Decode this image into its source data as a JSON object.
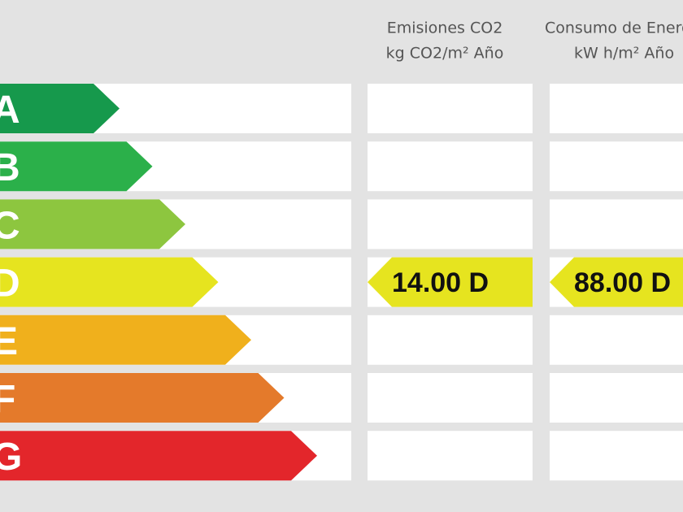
{
  "header": {
    "emissions_title": "Emisiones CO2",
    "emissions_unit": "kg CO2/m² Año",
    "consumption_title": "Consumo de Energía",
    "consumption_unit": "kW h/m² Año"
  },
  "ratings": [
    {
      "label": "A",
      "color": "#16994c"
    },
    {
      "label": "B",
      "color": "#2bb04a"
    },
    {
      "label": "C",
      "color": "#8dc63f"
    },
    {
      "label": "D",
      "color": "#e6e41f"
    },
    {
      "label": "E",
      "color": "#f0b01c"
    },
    {
      "label": "F",
      "color": "#e47a2b"
    },
    {
      "label": "G",
      "color": "#e3262b"
    }
  ],
  "emissions": {
    "text": "14.00 D",
    "row": 3
  },
  "consumption": {
    "text": "88.00 D",
    "row": 3
  }
}
